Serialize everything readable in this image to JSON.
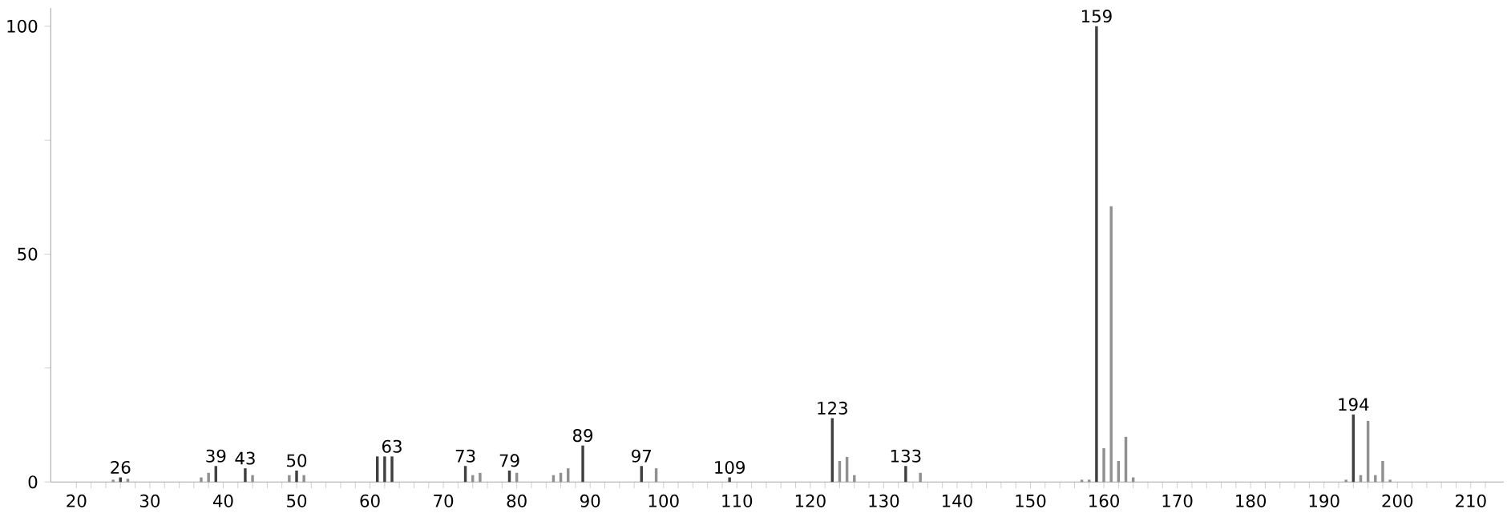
{
  "chart_data": {
    "type": "bar",
    "x": [
      25,
      26,
      27,
      37,
      38,
      39,
      43,
      44,
      49,
      50,
      51,
      61,
      62,
      63,
      73,
      74,
      75,
      79,
      80,
      85,
      86,
      87,
      89,
      97,
      99,
      109,
      123,
      124,
      125,
      126,
      133,
      135,
      157,
      158,
      159,
      160,
      161,
      162,
      163,
      164,
      193,
      194,
      195,
      196,
      197,
      198,
      199
    ],
    "values": [
      0.5,
      1,
      0.7,
      1,
      2,
      3.5,
      3,
      1.5,
      1.5,
      2.5,
      1.5,
      5.6,
      5.6,
      5.6,
      3.5,
      1.5,
      2,
      2.5,
      2,
      1.5,
      2,
      3,
      8,
      3.5,
      3,
      1,
      14,
      4.6,
      5.5,
      1.5,
      3.5,
      2,
      0.5,
      0.5,
      100,
      7.4,
      60.5,
      4.6,
      9.9,
      1,
      0.5,
      14.8,
      1.5,
      13.4,
      1.5,
      4.6,
      0.5
    ],
    "colors": [
      "#909090",
      "#404040",
      "#909090",
      "#909090",
      "#909090",
      "#404040",
      "#404040",
      "#909090",
      "#909090",
      "#404040",
      "#909090",
      "#404040",
      "#404040",
      "#404040",
      "#404040",
      "#909090",
      "#909090",
      "#404040",
      "#909090",
      "#909090",
      "#909090",
      "#909090",
      "#404040",
      "#404040",
      "#909090",
      "#404040",
      "#404040",
      "#909090",
      "#909090",
      "#909090",
      "#404040",
      "#909090",
      "#909090",
      "#909090",
      "#404040",
      "#909090",
      "#909090",
      "#909090",
      "#909090",
      "#909090",
      "#909090",
      "#404040",
      "#909090",
      "#909090",
      "#909090",
      "#909090",
      "#909090"
    ],
    "xlim": [
      16.5,
      214.5
    ],
    "ylim": [
      0,
      104
    ],
    "xticks": [
      20,
      {
        "value": 22,
        "label": null
      },
      {
        "value": 24,
        "label": null
      },
      {
        "value": 26,
        "label": null
      },
      {
        "value": 28,
        "label": null
      },
      30,
      {
        "value": 32,
        "label": null
      },
      {
        "value": 34,
        "label": null
      },
      {
        "value": 36,
        "label": null
      },
      {
        "value": 38,
        "label": null
      },
      40,
      {
        "value": 42,
        "label": null
      },
      {
        "value": 44,
        "label": null
      },
      {
        "value": 46,
        "label": null
      },
      {
        "value": 48,
        "label": null
      },
      50,
      {
        "value": 52,
        "label": null
      },
      {
        "value": 54,
        "label": null
      },
      {
        "value": 56,
        "label": null
      },
      {
        "value": 58,
        "label": null
      },
      60,
      {
        "value": 62,
        "label": null
      },
      {
        "value": 64,
        "label": null
      },
      {
        "value": 66,
        "label": null
      },
      {
        "value": 68,
        "label": null
      },
      70,
      {
        "value": 72,
        "label": null
      },
      {
        "value": 74,
        "label": null
      },
      {
        "value": 76,
        "label": null
      },
      {
        "value": 78,
        "label": null
      },
      80,
      {
        "value": 82,
        "label": null
      },
      {
        "value": 84,
        "label": null
      },
      {
        "value": 86,
        "label": null
      },
      {
        "value": 88,
        "label": null
      },
      90,
      {
        "value": 92,
        "label": null
      },
      {
        "value": 94,
        "label": null
      },
      {
        "value": 96,
        "label": null
      },
      {
        "value": 98,
        "label": null
      },
      100,
      {
        "value": 102,
        "label": null
      },
      {
        "value": 104,
        "label": null
      },
      {
        "value": 106,
        "label": null
      },
      {
        "value": 108,
        "label": null
      },
      110,
      {
        "value": 112,
        "label": null
      },
      {
        "value": 114,
        "label": null
      },
      {
        "value": 116,
        "label": null
      },
      {
        "value": 118,
        "label": null
      },
      120,
      {
        "value": 122,
        "label": null
      },
      {
        "value": 124,
        "label": null
      },
      {
        "value": 126,
        "label": null
      },
      {
        "value": 128,
        "label": null
      },
      130,
      {
        "value": 132,
        "label": null
      },
      {
        "value": 134,
        "label": null
      },
      {
        "value": 136,
        "label": null
      },
      {
        "value": 138,
        "label": null
      },
      140,
      {
        "value": 142,
        "label": null
      },
      {
        "value": 144,
        "label": null
      },
      {
        "value": 146,
        "label": null
      },
      {
        "value": 148,
        "label": null
      },
      150,
      {
        "value": 152,
        "label": null
      },
      {
        "value": 154,
        "label": null
      },
      {
        "value": 156,
        "label": null
      },
      {
        "value": 158,
        "label": null
      },
      160,
      {
        "value": 162,
        "label": null
      },
      {
        "value": 164,
        "label": null
      },
      {
        "value": 166,
        "label": null
      },
      {
        "value": 168,
        "label": null
      },
      170,
      {
        "value": 172,
        "label": null
      },
      {
        "value": 174,
        "label": null
      },
      {
        "value": 176,
        "label": null
      },
      {
        "value": 178,
        "label": null
      },
      180,
      {
        "value": 182,
        "label": null
      },
      {
        "value": 184,
        "label": null
      },
      {
        "value": 186,
        "label": null
      },
      {
        "value": 188,
        "label": null
      },
      190,
      {
        "value": 192,
        "label": null
      },
      {
        "value": 194,
        "label": null
      },
      {
        "value": 196,
        "label": null
      },
      {
        "value": 198,
        "label": null
      },
      200,
      {
        "value": 202,
        "label": null
      },
      {
        "value": 204,
        "label": null
      },
      {
        "value": 206,
        "label": null
      },
      {
        "value": 208,
        "label": null
      },
      210,
      {
        "value": 212,
        "label": null
      }
    ],
    "yticks": [
      0,
      {
        "value": 25,
        "label": null
      },
      50,
      {
        "value": 75,
        "label": null
      },
      100
    ],
    "annotations": [
      {
        "text": "26",
        "x": 26,
        "y": 1
      },
      {
        "text": "39",
        "x": 39,
        "y": 3.5
      },
      {
        "text": "43",
        "x": 43,
        "y": 3
      },
      {
        "text": "50",
        "x": 50,
        "y": 2.5
      },
      {
        "text": "63",
        "x": 63,
        "y": 5.6
      },
      {
        "text": "73",
        "x": 73,
        "y": 3.5
      },
      {
        "text": "79",
        "x": 79,
        "y": 2.5
      },
      {
        "text": "89",
        "x": 89,
        "y": 8
      },
      {
        "text": "97",
        "x": 97,
        "y": 3.5
      },
      {
        "text": "109",
        "x": 109,
        "y": 1
      },
      {
        "text": "123",
        "x": 123,
        "y": 14
      },
      {
        "text": "133",
        "x": 133,
        "y": 3.5
      },
      {
        "text": "159",
        "x": 159,
        "y": 100
      },
      {
        "text": "194",
        "x": 194,
        "y": 14.8
      }
    ],
    "grid": false
  }
}
